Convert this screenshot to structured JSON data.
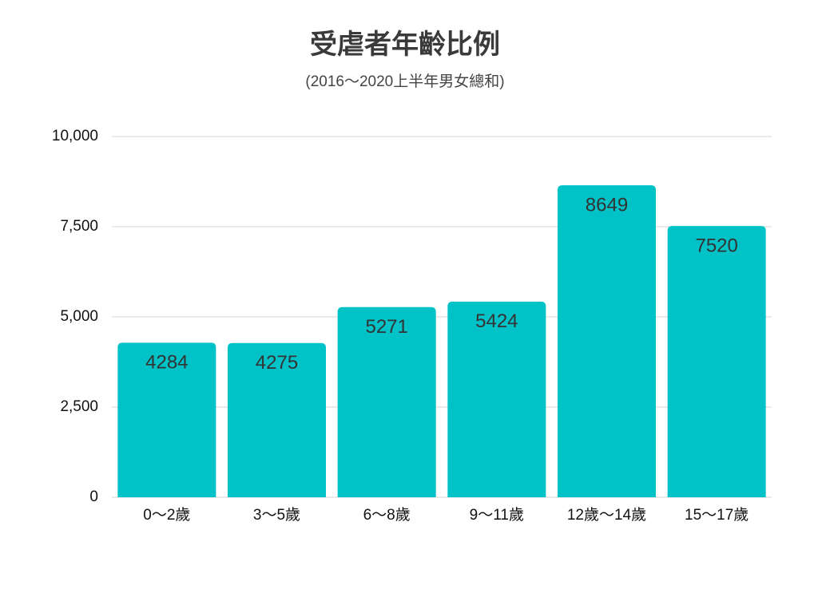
{
  "chart_data": {
    "type": "bar",
    "title": "受虐者年齡比例",
    "subtitle": "(2016～2020上半年男女總和)",
    "categories": [
      "0～2歲",
      "3～5歲",
      "6～8歲",
      "9～11歲",
      "12歲～14歲",
      "15～17歲"
    ],
    "values": [
      4284,
      4275,
      5271,
      5424,
      8649,
      7520
    ],
    "color": "#00c2c7",
    "ylim": [
      0,
      10000
    ],
    "yticks": [
      0,
      {
        "value": 2500,
        "label": "2,500"
      },
      {
        "value": 5000,
        "label": "5,000"
      },
      {
        "value": 7500,
        "label": "7,500"
      },
      {
        "value": 10000,
        "label": "10,000"
      }
    ],
    "grid": true
  }
}
